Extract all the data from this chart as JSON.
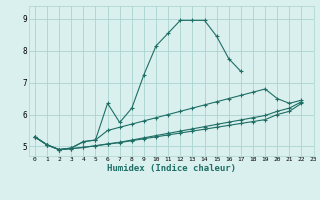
{
  "xlabel": "Humidex (Indice chaleur)",
  "bg_color": "#daf0ee",
  "grid_color": "#aad4d0",
  "line_color": "#1e6e65",
  "xlim": [
    -0.5,
    23
  ],
  "ylim": [
    4.7,
    9.4
  ],
  "xticks": [
    0,
    1,
    2,
    3,
    4,
    5,
    6,
    7,
    8,
    9,
    10,
    11,
    12,
    13,
    14,
    15,
    16,
    17,
    18,
    19,
    20,
    21,
    22,
    23
  ],
  "yticks": [
    5,
    6,
    7,
    8,
    9
  ],
  "series": [
    [
      5.3,
      5.05,
      4.9,
      4.95,
      5.15,
      5.2,
      6.35,
      5.75,
      6.2,
      7.25,
      8.15,
      8.55,
      8.95,
      8.95,
      8.95,
      8.45,
      7.75,
      7.35,
      null,
      null,
      null,
      null,
      null
    ],
    [
      5.3,
      5.05,
      4.9,
      4.95,
      5.15,
      5.2,
      5.5,
      5.6,
      5.7,
      5.8,
      5.9,
      6.0,
      6.1,
      6.2,
      6.3,
      6.4,
      6.5,
      6.6,
      6.7,
      6.8,
      6.5,
      6.35,
      6.45
    ],
    [
      5.3,
      5.05,
      4.9,
      4.93,
      4.97,
      5.02,
      5.08,
      5.13,
      5.2,
      5.27,
      5.34,
      5.41,
      5.48,
      5.55,
      5.62,
      5.69,
      5.76,
      5.83,
      5.9,
      5.97,
      6.1,
      6.2,
      6.4
    ],
    [
      5.3,
      5.05,
      4.9,
      4.93,
      4.97,
      5.02,
      5.07,
      5.12,
      5.18,
      5.24,
      5.3,
      5.36,
      5.42,
      5.48,
      5.54,
      5.6,
      5.66,
      5.72,
      5.78,
      5.84,
      6.0,
      6.1,
      6.35
    ]
  ]
}
